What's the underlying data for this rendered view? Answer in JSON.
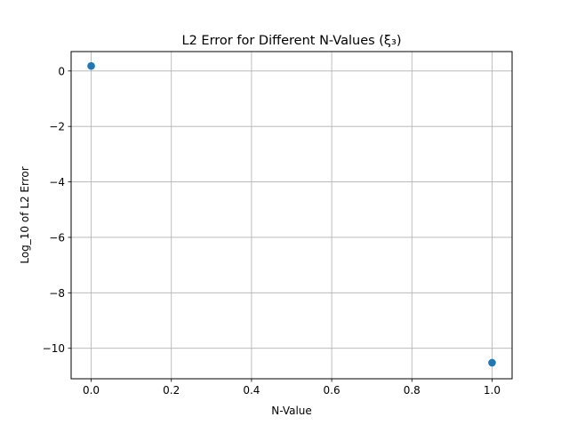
{
  "chart_data": {
    "type": "scatter",
    "title": "L2 Error for Different N-Values (ξ₃)",
    "xlabel": "N-Value",
    "ylabel": "Log_10 of L2 Error",
    "xlim": [
      -0.05,
      1.05
    ],
    "ylim": [
      -11.1,
      0.7
    ],
    "xticks": [
      0.0,
      0.2,
      0.4,
      0.6,
      0.8,
      1.0
    ],
    "xtick_labels": [
      "0.0",
      "0.2",
      "0.4",
      "0.6",
      "0.8",
      "1.0"
    ],
    "yticks": [
      0,
      -2,
      -4,
      -6,
      -8,
      -10
    ],
    "ytick_labels": [
      "0",
      "−2",
      "−4",
      "−6",
      "−8",
      "−10"
    ],
    "grid": true,
    "series": [
      {
        "x": [
          0.0,
          1.0
        ],
        "y": [
          0.18,
          -10.52
        ],
        "color": "#1f77b4"
      }
    ]
  }
}
